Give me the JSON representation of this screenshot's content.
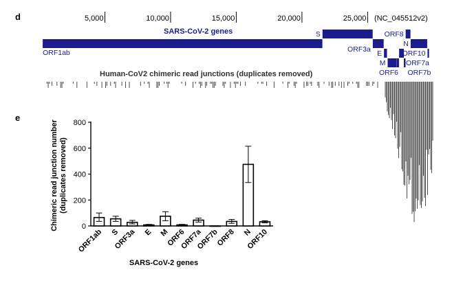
{
  "panel_letters": {
    "top": "d",
    "bottom": "e"
  },
  "browser": {
    "coord_ticks": [
      "5,000",
      "10,000",
      "15,000",
      "20,000",
      "25,000"
    ],
    "accession": "(NC_045512v2)",
    "genes_track_title": "SARS-CoV-2 genes",
    "junctions_track_title": "Human-CoV2 chimeric read junctions (duplicates removed)",
    "genome_length": 29903,
    "genes": [
      {
        "name": "ORF1ab",
        "start": 266,
        "end": 21555
      },
      {
        "name": "S",
        "start": 21563,
        "end": 25384
      },
      {
        "name": "ORF3a",
        "start": 25393,
        "end": 26220
      },
      {
        "name": "E",
        "start": 26245,
        "end": 26472
      },
      {
        "name": "M",
        "start": 26523,
        "end": 27191
      },
      {
        "name": "ORF6",
        "start": 27202,
        "end": 27387
      },
      {
        "name": "ORF7a",
        "start": 27394,
        "end": 27759
      },
      {
        "name": "ORF7b",
        "start": 27756,
        "end": 27887
      },
      {
        "name": "ORF8",
        "start": 27894,
        "end": 28259
      },
      {
        "name": "N",
        "start": 28274,
        "end": 29533
      },
      {
        "name": "ORF10",
        "start": 29558,
        "end": 29674
      }
    ],
    "colors": {
      "gene": "#1c1c8c",
      "junction": "#4a4a4a"
    }
  },
  "chart_data": {
    "type": "bar",
    "categories": [
      "ORF1ab",
      "S",
      "ORF3a",
      "E",
      "M",
      "ORF6",
      "ORF7a",
      "ORF7b",
      "ORF8",
      "N",
      "ORF10"
    ],
    "values": [
      65,
      55,
      28,
      8,
      75,
      8,
      45,
      0,
      35,
      475,
      32
    ],
    "error_low": [
      30,
      20,
      12,
      4,
      35,
      4,
      15,
      0,
      15,
      140,
      8
    ],
    "error_high": [
      35,
      20,
      15,
      4,
      35,
      4,
      15,
      0,
      15,
      140,
      8
    ],
    "xlabel": "SARS-CoV-2 genes",
    "ylabel_line1": "Chimeric read junction number",
    "ylabel_line2": "(duplicates removed)",
    "ylim": [
      0,
      800
    ],
    "yticks": [
      0,
      200,
      400,
      600,
      800
    ],
    "grid": false
  }
}
